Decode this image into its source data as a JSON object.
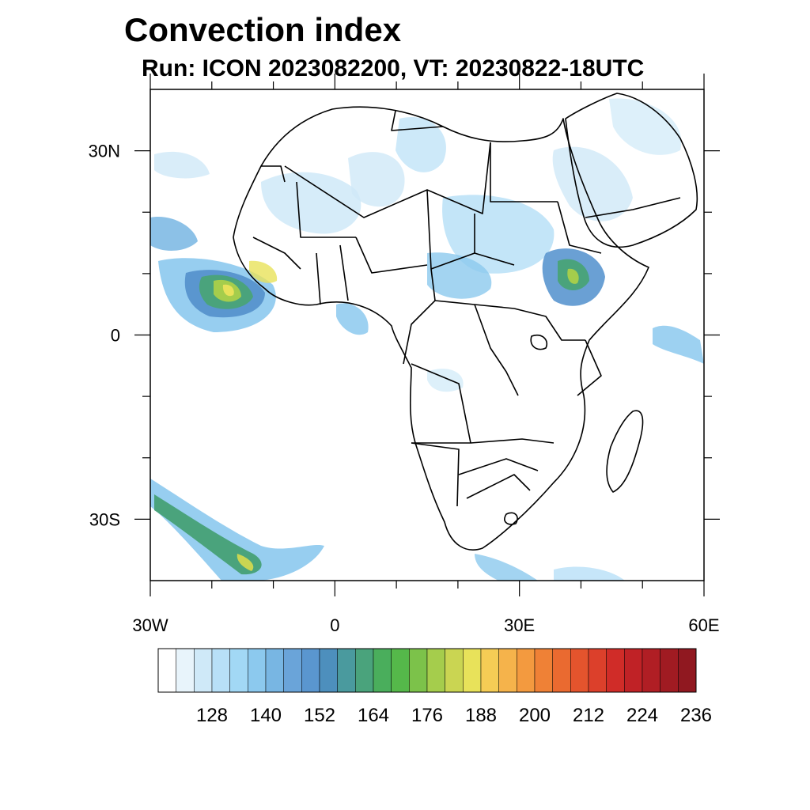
{
  "title": "Convection index",
  "subtitle": "Run: ICON 2023082200,  VT: 20230822-18UTC",
  "map": {
    "region": "Africa",
    "lon_range": [
      -30,
      60
    ],
    "lat_range": [
      -40,
      40
    ],
    "lat_ticks": [
      {
        "value": 30,
        "label": "30N"
      },
      {
        "value": 0,
        "label": "0"
      },
      {
        "value": -30,
        "label": "30S"
      }
    ],
    "lon_ticks": [
      {
        "value": -30,
        "label": "30W"
      },
      {
        "value": 0,
        "label": "0"
      },
      {
        "value": 30,
        "label": "30E"
      },
      {
        "value": 60,
        "label": "60E"
      }
    ],
    "minor_step_deg": 10
  },
  "colorbar": {
    "colors": [
      "#ffffff",
      "#e8f4fb",
      "#cfe9f8",
      "#b8e0f7",
      "#a2d8f5",
      "#8cc9ee",
      "#78b6e3",
      "#6aa4d9",
      "#5a96cf",
      "#4d8fbd",
      "#4a9a9e",
      "#4aa37c",
      "#4aae5c",
      "#55b84a",
      "#7cc24a",
      "#a5cd4c",
      "#cad552",
      "#e8e25a",
      "#f5cc55",
      "#f5b34b",
      "#f39a3f",
      "#ef8136",
      "#ea6a30",
      "#e4542d",
      "#dc402b",
      "#d02c28",
      "#c02226",
      "#b01e24",
      "#a01b22",
      "#901820"
    ],
    "labels": [
      "128",
      "140",
      "152",
      "164",
      "176",
      "188",
      "200",
      "212",
      "224",
      "236"
    ]
  }
}
